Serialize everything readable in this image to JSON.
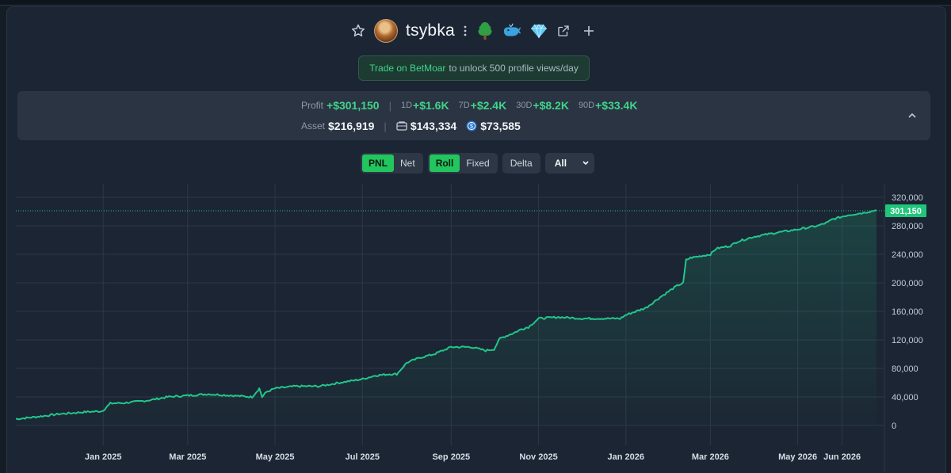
{
  "header": {
    "username": "tsybka",
    "badges": [
      "tree-emoji",
      "whale-emoji",
      "diamond-emoji"
    ],
    "actions": [
      "star-icon",
      "external-link-icon",
      "plus-icon"
    ]
  },
  "banner": {
    "link_text": "Trade on BetMoar",
    "rest_text": "to unlock 500 profile views/day"
  },
  "stats": {
    "profit_label": "Profit",
    "profit_value": "+$301,150",
    "periods": [
      {
        "label": "1D",
        "value": "+$1.6K"
      },
      {
        "label": "7D",
        "value": "+$2.4K"
      },
      {
        "label": "30D",
        "value": "+$8.2K"
      },
      {
        "label": "90D",
        "value": "+$33.4K"
      }
    ],
    "asset_label": "Asset",
    "asset_value": "$216,919",
    "wallet_value": "$143,334",
    "coin_value": "$73,585"
  },
  "controls": {
    "pnl": "PNL",
    "net": "Net",
    "roll": "Roll",
    "fixed": "Fixed",
    "delta": "Delta",
    "range": "All"
  },
  "colors": {
    "line": "#22c58a",
    "accent": "#22c55e",
    "price_tag": "#1fc67a"
  },
  "chart_data": {
    "type": "area",
    "x_ticks": [
      "Jan 2025",
      "Mar 2025",
      "May 2025",
      "Jul 2025",
      "Sep 2025",
      "Nov 2025",
      "Jan 2026",
      "Mar 2026",
      "May 2026",
      "Jun 2026"
    ],
    "y_ticks": [
      "0",
      "40,000",
      "80,000",
      "120,000",
      "160,000",
      "200,000",
      "240,000",
      "280,000",
      "320,000"
    ],
    "ylim": [
      0,
      320000
    ],
    "current_value_label": "301,150",
    "current_value": 301150,
    "grid": true,
    "series": [
      {
        "x": [
          "2024-11-01",
          "2024-11-15",
          "2024-12-01",
          "2024-12-20",
          "2024-12-31",
          "2025-01-02",
          "2025-01-06",
          "2025-01-15",
          "2025-02-01",
          "2025-02-15",
          "2025-03-01",
          "2025-03-15",
          "2025-04-01",
          "2025-04-15",
          "2025-04-20",
          "2025-04-22",
          "2025-04-25",
          "2025-05-01",
          "2025-05-15",
          "2025-06-01",
          "2025-06-15",
          "2025-07-01",
          "2025-07-10",
          "2025-07-15",
          "2025-07-20",
          "2025-07-25",
          "2025-08-01",
          "2025-08-10",
          "2025-08-20",
          "2025-09-01",
          "2025-09-15",
          "2025-09-25",
          "2025-10-01",
          "2025-10-05",
          "2025-10-15",
          "2025-10-20",
          "2025-10-25",
          "2025-11-01",
          "2025-11-15",
          "2025-12-01",
          "2025-12-15",
          "2025-12-28",
          "2026-01-01",
          "2026-01-15",
          "2026-01-25",
          "2026-02-05",
          "2026-02-10",
          "2026-02-12",
          "2026-02-15",
          "2026-03-01",
          "2026-03-05",
          "2026-03-15",
          "2026-03-20",
          "2026-04-01",
          "2026-04-15",
          "2026-05-01",
          "2026-05-15",
          "2026-05-22",
          "2026-05-25",
          "2026-06-05",
          "2026-06-15",
          "2026-06-25"
        ],
        "y": [
          9000,
          12000,
          16000,
          19000,
          20000,
          23000,
          31000,
          31500,
          35000,
          40000,
          42000,
          44000,
          42000,
          40000,
          52000,
          40000,
          47000,
          52000,
          55000,
          55000,
          60000,
          65000,
          70000,
          71000,
          72000,
          72000,
          88000,
          95000,
          100000,
          110000,
          110000,
          105000,
          107000,
          122000,
          130000,
          135000,
          138000,
          150000,
          152000,
          150000,
          150000,
          150000,
          155000,
          165000,
          180000,
          195000,
          200000,
          232000,
          235000,
          240000,
          248000,
          252000,
          258000,
          265000,
          270000,
          275000,
          280000,
          285000,
          289000,
          295000,
          298000,
          302000
        ]
      }
    ]
  }
}
